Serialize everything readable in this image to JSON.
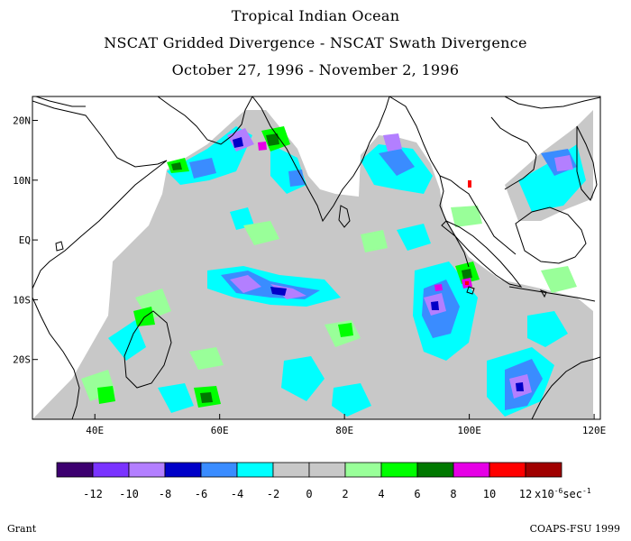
{
  "header": {
    "title": "Tropical Indian Ocean",
    "subtitle": "NSCAT Gridded Divergence - NSCAT Swath Divergence",
    "date_range": "October 27, 1996 - November 2, 1996"
  },
  "map": {
    "lat_labels": [
      "20N",
      "10N",
      "EQ",
      "10S",
      "20S"
    ],
    "lat_values": [
      20,
      10,
      0,
      -10,
      -20
    ],
    "lon_labels": [
      "40E",
      "60E",
      "80E",
      "100E",
      "120E"
    ],
    "lon_values": [
      40,
      60,
      80,
      100,
      120
    ],
    "lon_range": [
      30,
      121
    ],
    "lat_range": [
      -30,
      24
    ]
  },
  "legend": {
    "colors": [
      "#3d0070",
      "#7a33ff",
      "#b37fff",
      "#0000c8",
      "#3a8cff",
      "#00ffff",
      "#c8c8c8",
      "#c8c8c8",
      "#99ff99",
      "#00ff00",
      "#007800",
      "#e600e6",
      "#ff0000",
      "#a00000"
    ],
    "tick_labels": [
      "-12",
      "-10",
      "-8",
      "-6",
      "-4",
      "-2",
      "0",
      "2",
      "4",
      "6",
      "8",
      "10",
      "12"
    ],
    "units_prefix": "x10",
    "units_exp": "-6",
    "units_suffix": "sec",
    "units_exp2": "-1"
  },
  "footer": {
    "left": "Grant",
    "right": "COAPS-FSU 1999"
  }
}
